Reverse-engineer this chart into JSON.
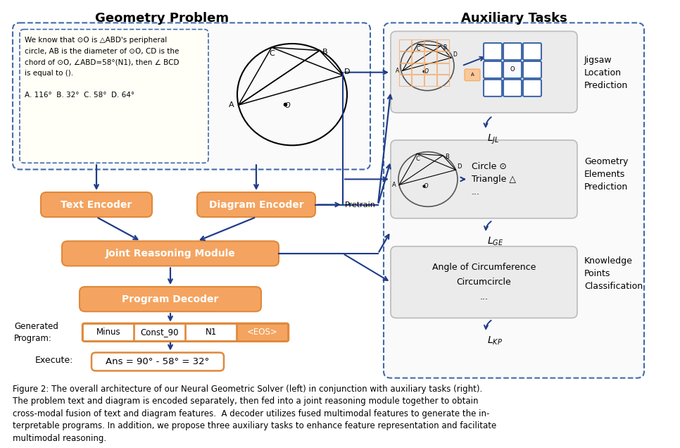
{
  "title_left": "Geometry Problem",
  "title_right": "Auxiliary Tasks",
  "fig_caption": "Figure 2: The overall architecture of our Neural Geometric Solver (left) in conjunction with auxiliary tasks (right).\nThe problem text and diagram is encoded separately, then fed into a joint reasoning module together to obtain\ncross-modal fusion of text and diagram features.  A decoder utilizes fused multimodal features to generate the in-\nterpretable programs. In addition, we propose three auxiliary tasks to enhance feature representation and facilitate\nmultimodal reasoning.",
  "orange_fill": "#F4A460",
  "orange_edge": "#E0883A",
  "orange_light": "#FAC898",
  "dashed_border": "#4169AA",
  "arrow_color": "#1F3C88",
  "gray_fill": "#EBEBEB",
  "gray_edge": "#BBBBBB",
  "white": "#FFFFFF",
  "black": "#000000",
  "problem_text_line1": "We know that ⊙O is △ABD's peripheral",
  "problem_text_line2": "circle, AB is the diameter of ⊙O, CD is the",
  "problem_text_line3": "chord of ⊙O, ∠ABD=58°(N1), then ∠ BCD",
  "problem_text_line4": "is equal to ().",
  "problem_text_line5": "",
  "problem_text_line6": "A. 116°  B. 32°  C. 58°  D. 64°",
  "encoder_left_label": "Text Encoder",
  "encoder_right_label": "Diagram Encoder",
  "joint_label": "Joint Reasoning Module",
  "decoder_label": "Program Decoder",
  "pretrain_label": "Pretrain",
  "generated_label": "Generated\nProgram:",
  "execute_label": "Execute:",
  "program_tokens": [
    "Minus",
    "Const_90",
    "N1",
    "<EOS>"
  ],
  "execute_text": "Ans = 90° - 58° = 32°",
  "jigsaw_label": "Jigsaw\nLocation\nPrediction",
  "geometry_label": "Geometry\nElements\nPrediction",
  "knowledge_label": "Knowledge\nPoints\nClassification",
  "task2_content": "Circle ⊙\nTriangle △\n...",
  "task3_content": "Angle of Circumference\nCircumcircle\n...",
  "background_color": "#FFFFFF"
}
